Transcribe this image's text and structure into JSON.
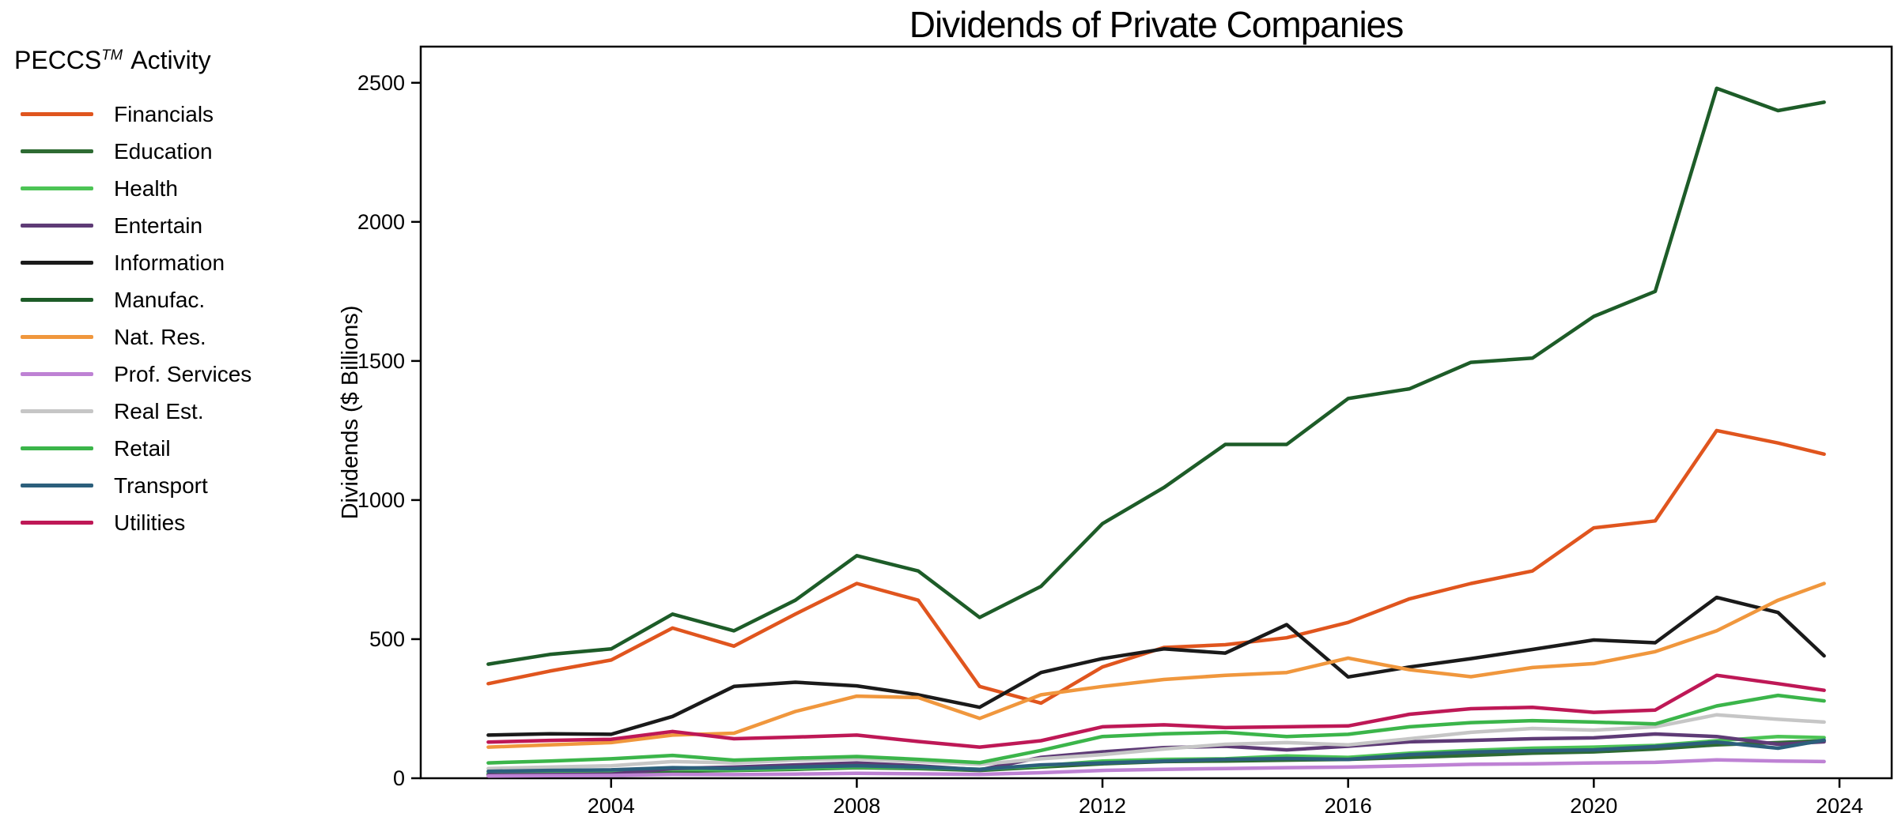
{
  "page": {
    "background": "#ffffff",
    "axis_color": "#000000"
  },
  "legend": {
    "title_prefix": "PECCS",
    "title_sup": "TM",
    "title_suffix": "Activity"
  },
  "chart_data": {
    "type": "line",
    "title": "Dividends of Private Companies",
    "xlabel": "",
    "ylabel": "Dividends ($ Billions)",
    "legend_title": "PECCS TM Activity",
    "legend_position": "left",
    "grid": false,
    "xlim": [
      2000.9,
      2024.85
    ],
    "ylim": [
      0,
      2630
    ],
    "xticks": [
      2004,
      2008,
      2012,
      2016,
      2020,
      2024
    ],
    "yticks": [
      0,
      500,
      1000,
      1500,
      2000,
      2500
    ],
    "x": [
      2002,
      2003,
      2004,
      2005,
      2006,
      2007,
      2008,
      2009,
      2010,
      2011,
      2012,
      2013,
      2014,
      2015,
      2016,
      2017,
      2018,
      2019,
      2020,
      2021,
      2022,
      2023,
      2023.75
    ],
    "series": [
      {
        "name": "Financials",
        "color": "#E0551E",
        "values": [
          340,
          385,
          425,
          540,
          475,
          590,
          700,
          640,
          330,
          270,
          400,
          470,
          480,
          505,
          560,
          645,
          700,
          745,
          900,
          925,
          1250,
          1205,
          1165
        ]
      },
      {
        "name": "Education",
        "color": "#2E6B33",
        "values": [
          15,
          17,
          18,
          25,
          28,
          32,
          38,
          35,
          28,
          40,
          52,
          60,
          62,
          65,
          68,
          75,
          82,
          90,
          95,
          105,
          120,
          128,
          135
        ]
      },
      {
        "name": "Health",
        "color": "#4CC455",
        "values": [
          18,
          22,
          26,
          32,
          30,
          35,
          40,
          38,
          32,
          45,
          62,
          68,
          70,
          80,
          75,
          90,
          100,
          108,
          112,
          118,
          135,
          150,
          146
        ]
      },
      {
        "name": "Entertain",
        "color": "#5E3B76",
        "values": [
          12,
          13,
          15,
          35,
          40,
          48,
          55,
          45,
          30,
          75,
          95,
          110,
          115,
          102,
          115,
          131,
          136,
          142,
          145,
          159,
          150,
          122,
          131
        ]
      },
      {
        "name": "Information",
        "color": "#1A1A1A",
        "values": [
          155,
          160,
          158,
          222,
          330,
          345,
          332,
          300,
          255,
          380,
          430,
          465,
          450,
          552,
          364,
          400,
          430,
          463,
          497,
          487,
          650,
          596,
          440
        ]
      },
      {
        "name": "Manufac.",
        "color": "#1D5C28",
        "values": [
          410,
          445,
          465,
          590,
          530,
          640,
          800,
          745,
          578,
          690,
          915,
          1045,
          1200,
          1200,
          1365,
          1400,
          1495,
          1510,
          1660,
          1750,
          2480,
          2400,
          2430
        ]
      },
      {
        "name": "Nat. Res.",
        "color": "#F0973D",
        "values": [
          112,
          120,
          128,
          155,
          162,
          240,
          295,
          290,
          215,
          300,
          330,
          355,
          370,
          380,
          432,
          390,
          365,
          398,
          412,
          455,
          530,
          640,
          700
        ]
      },
      {
        "name": "Prof. Services",
        "color": "#BE82D4",
        "values": [
          8,
          9,
          10,
          14,
          13,
          15,
          18,
          16,
          14,
          20,
          28,
          32,
          35,
          38,
          40,
          45,
          50,
          52,
          55,
          57,
          66,
          62,
          60
        ]
      },
      {
        "name": "Real Est.",
        "color": "#C6C6C6",
        "values": [
          35,
          40,
          45,
          60,
          55,
          65,
          70,
          60,
          50,
          70,
          85,
          105,
          122,
          128,
          120,
          142,
          165,
          179,
          173,
          185,
          228,
          212,
          202
        ]
      },
      {
        "name": "Retail",
        "color": "#3BB54A",
        "values": [
          55,
          62,
          70,
          82,
          65,
          72,
          78,
          68,
          56,
          100,
          150,
          160,
          165,
          150,
          158,
          185,
          200,
          207,
          202,
          195,
          260,
          298,
          278
        ]
      },
      {
        "name": "Transport",
        "color": "#2C5F7C",
        "values": [
          25,
          28,
          30,
          38,
          35,
          40,
          45,
          40,
          32,
          48,
          55,
          62,
          68,
          71,
          68,
          85,
          94,
          99,
          102,
          114,
          130,
          108,
          137
        ]
      },
      {
        "name": "Utilities",
        "color": "#BE1856",
        "values": [
          130,
          136,
          140,
          168,
          142,
          148,
          155,
          132,
          112,
          135,
          185,
          192,
          182,
          185,
          188,
          230,
          250,
          255,
          237,
          245,
          370,
          340,
          316
        ]
      }
    ]
  }
}
